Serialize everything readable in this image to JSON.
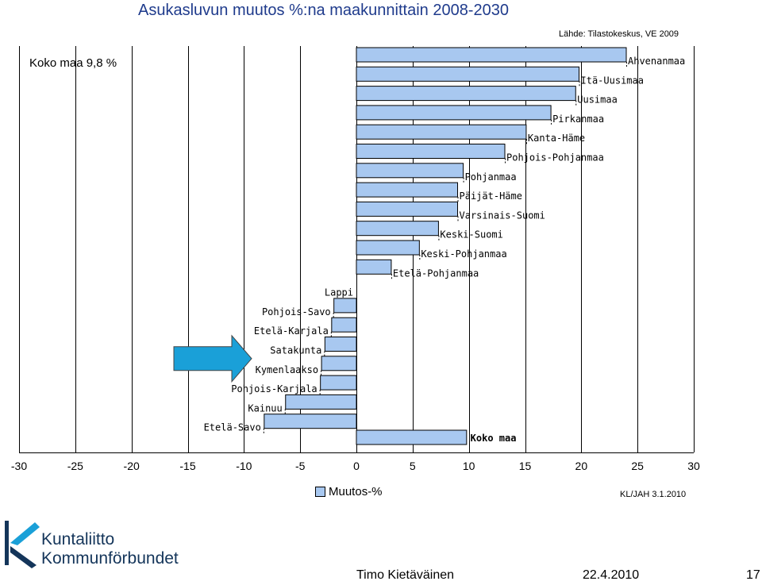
{
  "header": {
    "title": "Asukasluvun muutos %:na maakunnittain 2008-2030",
    "source": "Lähde: Tilastokeskus, VE 2009",
    "koko_maa_note": "Koko maa 9,8 %"
  },
  "chart_data": {
    "type": "bar",
    "orientation": "horizontal",
    "categories": [
      "Ahvenanmaa",
      "Itä-Uusimaa",
      "Uusimaa",
      "Pirkanmaa",
      "Kanta-Häme",
      "Pohjois-Pohjanmaa",
      "Pohjanmaa",
      "Päijät-Häme",
      "Varsinais-Suomi",
      "Keski-Suomi",
      "Keski-Pohjanmaa",
      "Etelä-Pohjanmaa",
      "Lappi",
      "Pohjois-Savo",
      "Etelä-Karjala",
      "Satakunta",
      "Kymenlaakso",
      "Pohjois-Karjala",
      "Kainuu",
      "Etelä-Savo",
      "Koko maa"
    ],
    "values": [
      24.0,
      19.8,
      19.5,
      17.3,
      15.1,
      13.2,
      9.5,
      9.0,
      9.0,
      7.3,
      5.6,
      3.1,
      0.0,
      -2.0,
      -2.2,
      -2.8,
      -3.1,
      -3.2,
      -6.3,
      -8.2,
      9.8
    ],
    "xlim": [
      -30,
      30
    ],
    "xticks": [
      "-30",
      "-25",
      "-20",
      "-15",
      "-10",
      "-5",
      "0",
      "5",
      "10",
      "15",
      "20",
      "25",
      "30"
    ],
    "legend": "Muutos-%",
    "grid": true,
    "bar_color": "#a8c8f0",
    "highlight_arrow_color": "#1aa0d8",
    "highlighted_category": "Kymenlaakso"
  },
  "footer": {
    "stamp": "KL/JAH 3.1.2010",
    "author": "Timo Kietäväinen",
    "date": "22.4.2010",
    "page": "17"
  },
  "logo": {
    "line1": "Kuntaliitto",
    "line2": "Kommunförbundet",
    "color": "#14355a"
  }
}
